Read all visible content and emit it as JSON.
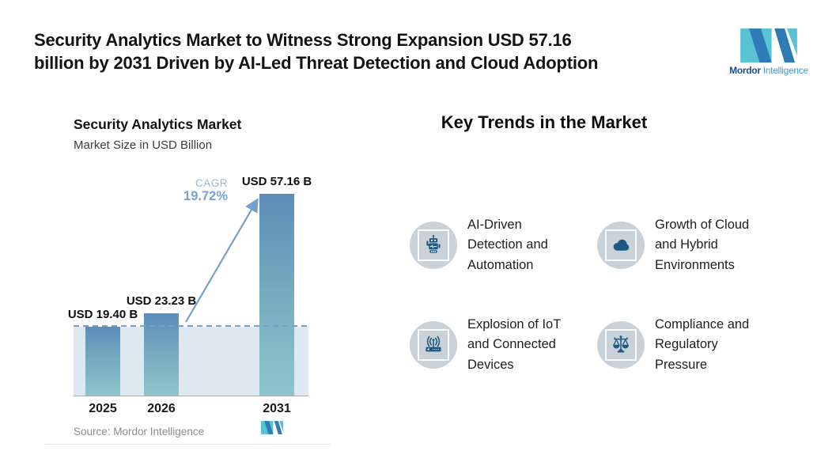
{
  "header": {
    "title_lines": [
      "Security Analytics Market to Witness Strong Expansion USD 57.16",
      "billion by 2031 Driven by AI-Led Threat Detection and Cloud Adoption"
    ],
    "brand": {
      "name_primary": "Mordor",
      "name_secondary": "Intelligence"
    }
  },
  "chart_data": {
    "type": "bar",
    "title": "Security Analytics Market",
    "subtitle": "Market Size in USD Billion",
    "unit": "USD Billion",
    "categories": [
      "2025",
      "2026",
      "2031"
    ],
    "values": [
      19.4,
      23.23,
      57.16
    ],
    "bar_labels": [
      "USD 19.40 B",
      "USD 23.23 B",
      "USD 57.16 B"
    ],
    "ylim": [
      0,
      57.16
    ],
    "grid": false,
    "cagr": {
      "label": "CAGR",
      "value": "19.72%"
    },
    "reference_line": {
      "style": "dashed",
      "at_value": 19.4,
      "note": "horizontal dashed line at 2025 level with light shaded region below"
    },
    "annotations": [
      "growth arrow from top of 2026 bar to top of 2031 bar"
    ],
    "source": "Source: Mordor Intelligence"
  },
  "trends": {
    "heading": "Key Trends in the Market",
    "items": [
      {
        "icon": "robot-icon",
        "label": "AI-Driven Detection and Automation",
        "lines": [
          "AI-Driven",
          "Detection and",
          "Automation"
        ]
      },
      {
        "icon": "cloud-icon",
        "label": "Growth of Cloud and Hybrid Environments",
        "lines": [
          "Growth of Cloud",
          "and Hybrid",
          "Environments"
        ]
      },
      {
        "icon": "router-icon",
        "label": "Explosion of IoT and Connected Devices",
        "lines": [
          "Explosion of IoT",
          "and Connected",
          "Devices"
        ]
      },
      {
        "icon": "scales-icon",
        "label": "Compliance and Regulatory Pressure",
        "lines": [
          "Compliance and",
          "Regulatory",
          "Pressure"
        ]
      }
    ]
  },
  "colors": {
    "brand_teal": "#59C3D3",
    "brand_blue": "#2E7BB5",
    "brand_text_primary": "#1B4E87",
    "brand_text_secondary": "#3C9CD0",
    "bar_gradient_top": "#5D8DB9",
    "bar_gradient_bottom": "#8FC5CD",
    "shaded_region": "#DEE8F1",
    "annotation_blue": "#74A1CB",
    "icon_blue": "#1D5A80",
    "icon_circle_bg": "#C9D2D9"
  }
}
